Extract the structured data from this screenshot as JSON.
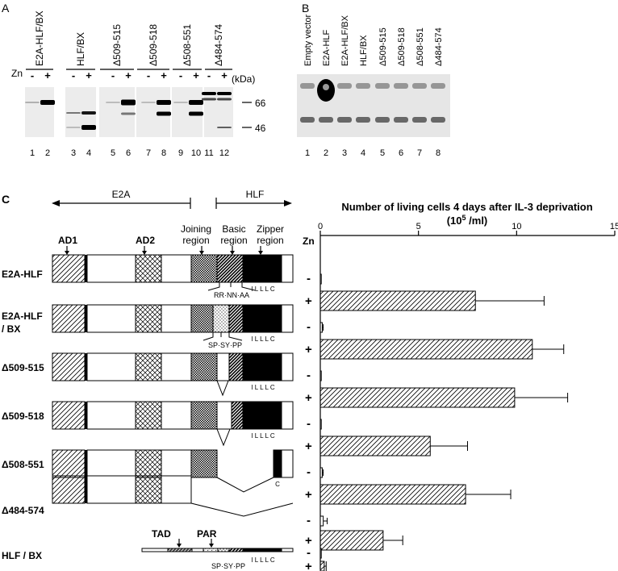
{
  "panel_labels": {
    "a": "A",
    "b": "B",
    "c": "C"
  },
  "panel_a": {
    "zn_label": "Zn",
    "kda_label": "(kDa)",
    "markers": [
      "66",
      "46"
    ],
    "groups": [
      "E2A-HLF/BX",
      "HLF/BX",
      "Δ509-515",
      "Δ509-518",
      "Δ508-551",
      "Δ484-574"
    ],
    "zn_signs": [
      "-",
      "+",
      "-",
      "+",
      "-",
      "+",
      "-",
      "+",
      "-",
      "+",
      "-",
      "+"
    ],
    "lanes": [
      "1",
      "2",
      "3",
      "4",
      "5",
      "6",
      "7",
      "8",
      "9",
      "10",
      "11",
      "12"
    ]
  },
  "panel_b": {
    "columns": [
      "Empty vector",
      "E2A-HLF",
      "E2A-HLF/BX",
      "HLF/BX",
      "Δ509-515",
      "Δ509-518",
      "Δ508-551",
      "Δ484-574"
    ],
    "lanes": [
      "1",
      "2",
      "3",
      "4",
      "5",
      "6",
      "7",
      "8"
    ]
  },
  "panel_c": {
    "e2a_label": "E2A",
    "hlf_label": "HLF",
    "region_labels": {
      "ad1": "AD1",
      "ad2": "AD2",
      "joining1": "Joining",
      "joining2": "region",
      "basic1": "Basic",
      "basic2": "region",
      "zipper1": "Zipper",
      "zipper2": "region",
      "tad": "TAD",
      "par": "PAR"
    },
    "constructs": [
      "E2A-HLF",
      "E2A-HLF",
      "/ BX",
      "Δ509-515",
      "Δ509-518",
      "Δ508-551",
      "Δ484-574",
      "HLF / BX"
    ],
    "residue_labels": {
      "wt": "RR·NN·AA",
      "bx": "SP·SY·PP",
      "zipper": "I  L  L  L  C",
      "c_only": "C"
    },
    "zn_label": "Zn",
    "zn_signs": [
      "-",
      "+"
    ]
  },
  "chart_data": {
    "type": "bar",
    "orientation": "horizontal",
    "title": "Number of living cells 4 days after IL-3 deprivation",
    "unit": "(10",
    "unit_exp": "5",
    "unit_tail": " /ml)",
    "xlim": [
      0,
      15
    ],
    "ticks": [
      "0",
      "5",
      "10",
      "15"
    ],
    "categories": [
      "E2A-HLF",
      "E2A-HLF / BX",
      "Δ509-515",
      "Δ509-518",
      "Δ508-551",
      "Δ484-574",
      "HLF / BX"
    ],
    "series": [
      {
        "name": "-",
        "values": [
          0.05,
          0.1,
          0.05,
          0.05,
          0.1,
          0.15,
          0.05
        ],
        "errors": [
          0.0,
          0.05,
          0.0,
          0.0,
          0.05,
          0.2,
          0.0
        ]
      },
      {
        "name": "+",
        "values": [
          7.9,
          10.8,
          9.9,
          5.6,
          7.4,
          3.2,
          0.2
        ],
        "errors": [
          3.5,
          1.6,
          2.7,
          1.9,
          2.3,
          1.0,
          0.1
        ]
      }
    ]
  }
}
